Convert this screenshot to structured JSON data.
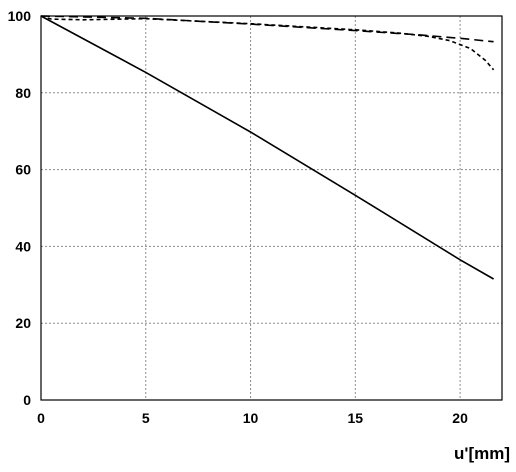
{
  "chart_data": {
    "type": "line",
    "title": "",
    "xlabel": "u'[mm]",
    "ylabel": "",
    "xlim": [
      0,
      22
    ],
    "ylim": [
      0,
      100
    ],
    "xticks": [
      0,
      5,
      10,
      15,
      20
    ],
    "yticks": [
      0,
      20,
      40,
      60,
      80,
      100
    ],
    "x_tick_labels": [
      "0",
      "5",
      "10",
      "15",
      "20"
    ],
    "y_tick_labels": [
      "0",
      "20",
      "40",
      "60",
      "80",
      "100"
    ],
    "grid": true,
    "legend": "none",
    "series": [
      {
        "style": "solid",
        "color": "#000000",
        "points": [
          [
            0,
            100
          ],
          [
            5,
            85.3
          ],
          [
            10,
            69.8
          ],
          [
            15,
            53.3
          ],
          [
            20,
            36.5
          ],
          [
            21.6,
            31.5
          ]
        ]
      },
      {
        "style": "long-dash",
        "color": "#000000",
        "points": [
          [
            0,
            100
          ],
          [
            5,
            99.4
          ],
          [
            10,
            97.9
          ],
          [
            15,
            96.2
          ],
          [
            18,
            95.1
          ],
          [
            20,
            94.2
          ],
          [
            21.6,
            93.3
          ]
        ]
      },
      {
        "style": "short-dash",
        "color": "#000000",
        "points": [
          [
            0,
            100
          ],
          [
            0.5,
            99.2
          ],
          [
            2,
            99.0
          ],
          [
            5,
            99.3
          ],
          [
            10,
            98.0
          ],
          [
            15,
            96.4
          ],
          [
            17,
            95.6
          ],
          [
            18.5,
            94.7
          ],
          [
            19.5,
            93.6
          ],
          [
            20.5,
            91.5
          ],
          [
            21.2,
            88.5
          ],
          [
            21.6,
            86.0
          ]
        ]
      }
    ]
  }
}
